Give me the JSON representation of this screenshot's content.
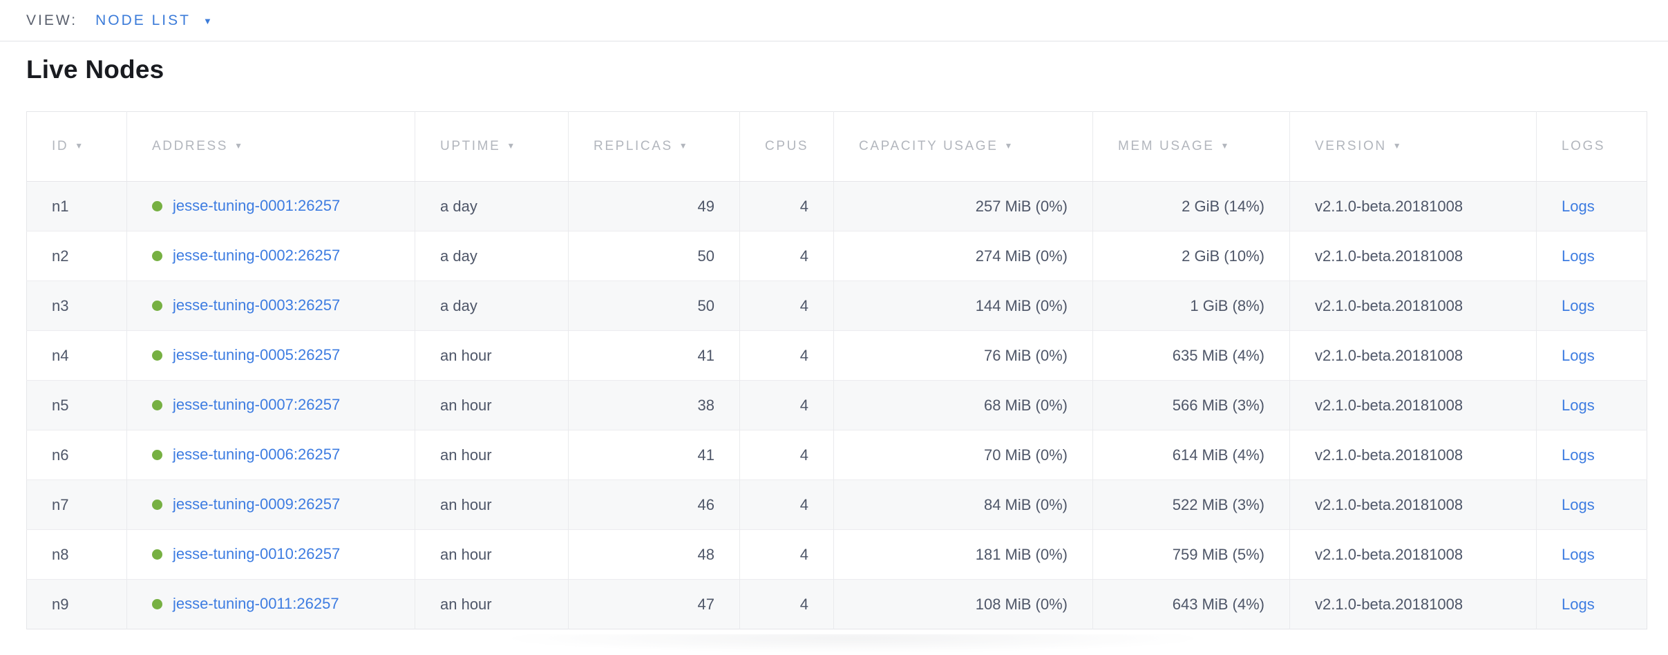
{
  "view_bar": {
    "label": "VIEW:",
    "selected": "NODE LIST",
    "caret": "▼"
  },
  "page": {
    "title": "Live Nodes"
  },
  "colors": {
    "link_blue": "#3d7ce1",
    "view_selector_blue": "#3b7bd9",
    "node_live_green": "#76b042",
    "header_gray": "#b2b6bd",
    "body_text": "#4e5668",
    "row_stripe": "#f7f8f9"
  },
  "table": {
    "sort_caret": "▼",
    "columns": [
      {
        "key": "id",
        "label": "ID",
        "sortable": true,
        "align": "left"
      },
      {
        "key": "address",
        "label": "ADDRESS",
        "sortable": true,
        "align": "left"
      },
      {
        "key": "uptime",
        "label": "UPTIME",
        "sortable": true,
        "align": "left"
      },
      {
        "key": "replicas",
        "label": "REPLICAS",
        "sortable": true,
        "align": "right"
      },
      {
        "key": "cpus",
        "label": "CPUS",
        "sortable": false,
        "align": "right"
      },
      {
        "key": "capacity",
        "label": "CAPACITY USAGE",
        "sortable": true,
        "align": "right"
      },
      {
        "key": "mem",
        "label": "MEM USAGE",
        "sortable": true,
        "align": "right"
      },
      {
        "key": "version",
        "label": "VERSION",
        "sortable": true,
        "align": "left"
      },
      {
        "key": "logs",
        "label": "LOGS",
        "sortable": false,
        "align": "left"
      }
    ],
    "rows": [
      {
        "id": "n1",
        "address": "jesse-tuning-0001:26257",
        "uptime": "a day",
        "replicas": "49",
        "cpus": "4",
        "capacity": "257 MiB (0%)",
        "mem": "2 GiB (14%)",
        "version": "v2.1.0-beta.20181008",
        "logs": "Logs"
      },
      {
        "id": "n2",
        "address": "jesse-tuning-0002:26257",
        "uptime": "a day",
        "replicas": "50",
        "cpus": "4",
        "capacity": "274 MiB (0%)",
        "mem": "2 GiB (10%)",
        "version": "v2.1.0-beta.20181008",
        "logs": "Logs"
      },
      {
        "id": "n3",
        "address": "jesse-tuning-0003:26257",
        "uptime": "a day",
        "replicas": "50",
        "cpus": "4",
        "capacity": "144 MiB (0%)",
        "mem": "1 GiB (8%)",
        "version": "v2.1.0-beta.20181008",
        "logs": "Logs"
      },
      {
        "id": "n4",
        "address": "jesse-tuning-0005:26257",
        "uptime": "an hour",
        "replicas": "41",
        "cpus": "4",
        "capacity": "76 MiB (0%)",
        "mem": "635 MiB (4%)",
        "version": "v2.1.0-beta.20181008",
        "logs": "Logs"
      },
      {
        "id": "n5",
        "address": "jesse-tuning-0007:26257",
        "uptime": "an hour",
        "replicas": "38",
        "cpus": "4",
        "capacity": "68 MiB (0%)",
        "mem": "566 MiB (3%)",
        "version": "v2.1.0-beta.20181008",
        "logs": "Logs"
      },
      {
        "id": "n6",
        "address": "jesse-tuning-0006:26257",
        "uptime": "an hour",
        "replicas": "41",
        "cpus": "4",
        "capacity": "70 MiB (0%)",
        "mem": "614 MiB (4%)",
        "version": "v2.1.0-beta.20181008",
        "logs": "Logs"
      },
      {
        "id": "n7",
        "address": "jesse-tuning-0009:26257",
        "uptime": "an hour",
        "replicas": "46",
        "cpus": "4",
        "capacity": "84 MiB (0%)",
        "mem": "522 MiB (3%)",
        "version": "v2.1.0-beta.20181008",
        "logs": "Logs"
      },
      {
        "id": "n8",
        "address": "jesse-tuning-0010:26257",
        "uptime": "an hour",
        "replicas": "48",
        "cpus": "4",
        "capacity": "181 MiB (0%)",
        "mem": "759 MiB (5%)",
        "version": "v2.1.0-beta.20181008",
        "logs": "Logs"
      },
      {
        "id": "n9",
        "address": "jesse-tuning-0011:26257",
        "uptime": "an hour",
        "replicas": "47",
        "cpus": "4",
        "capacity": "108 MiB (0%)",
        "mem": "643 MiB (4%)",
        "version": "v2.1.0-beta.20181008",
        "logs": "Logs"
      }
    ]
  }
}
